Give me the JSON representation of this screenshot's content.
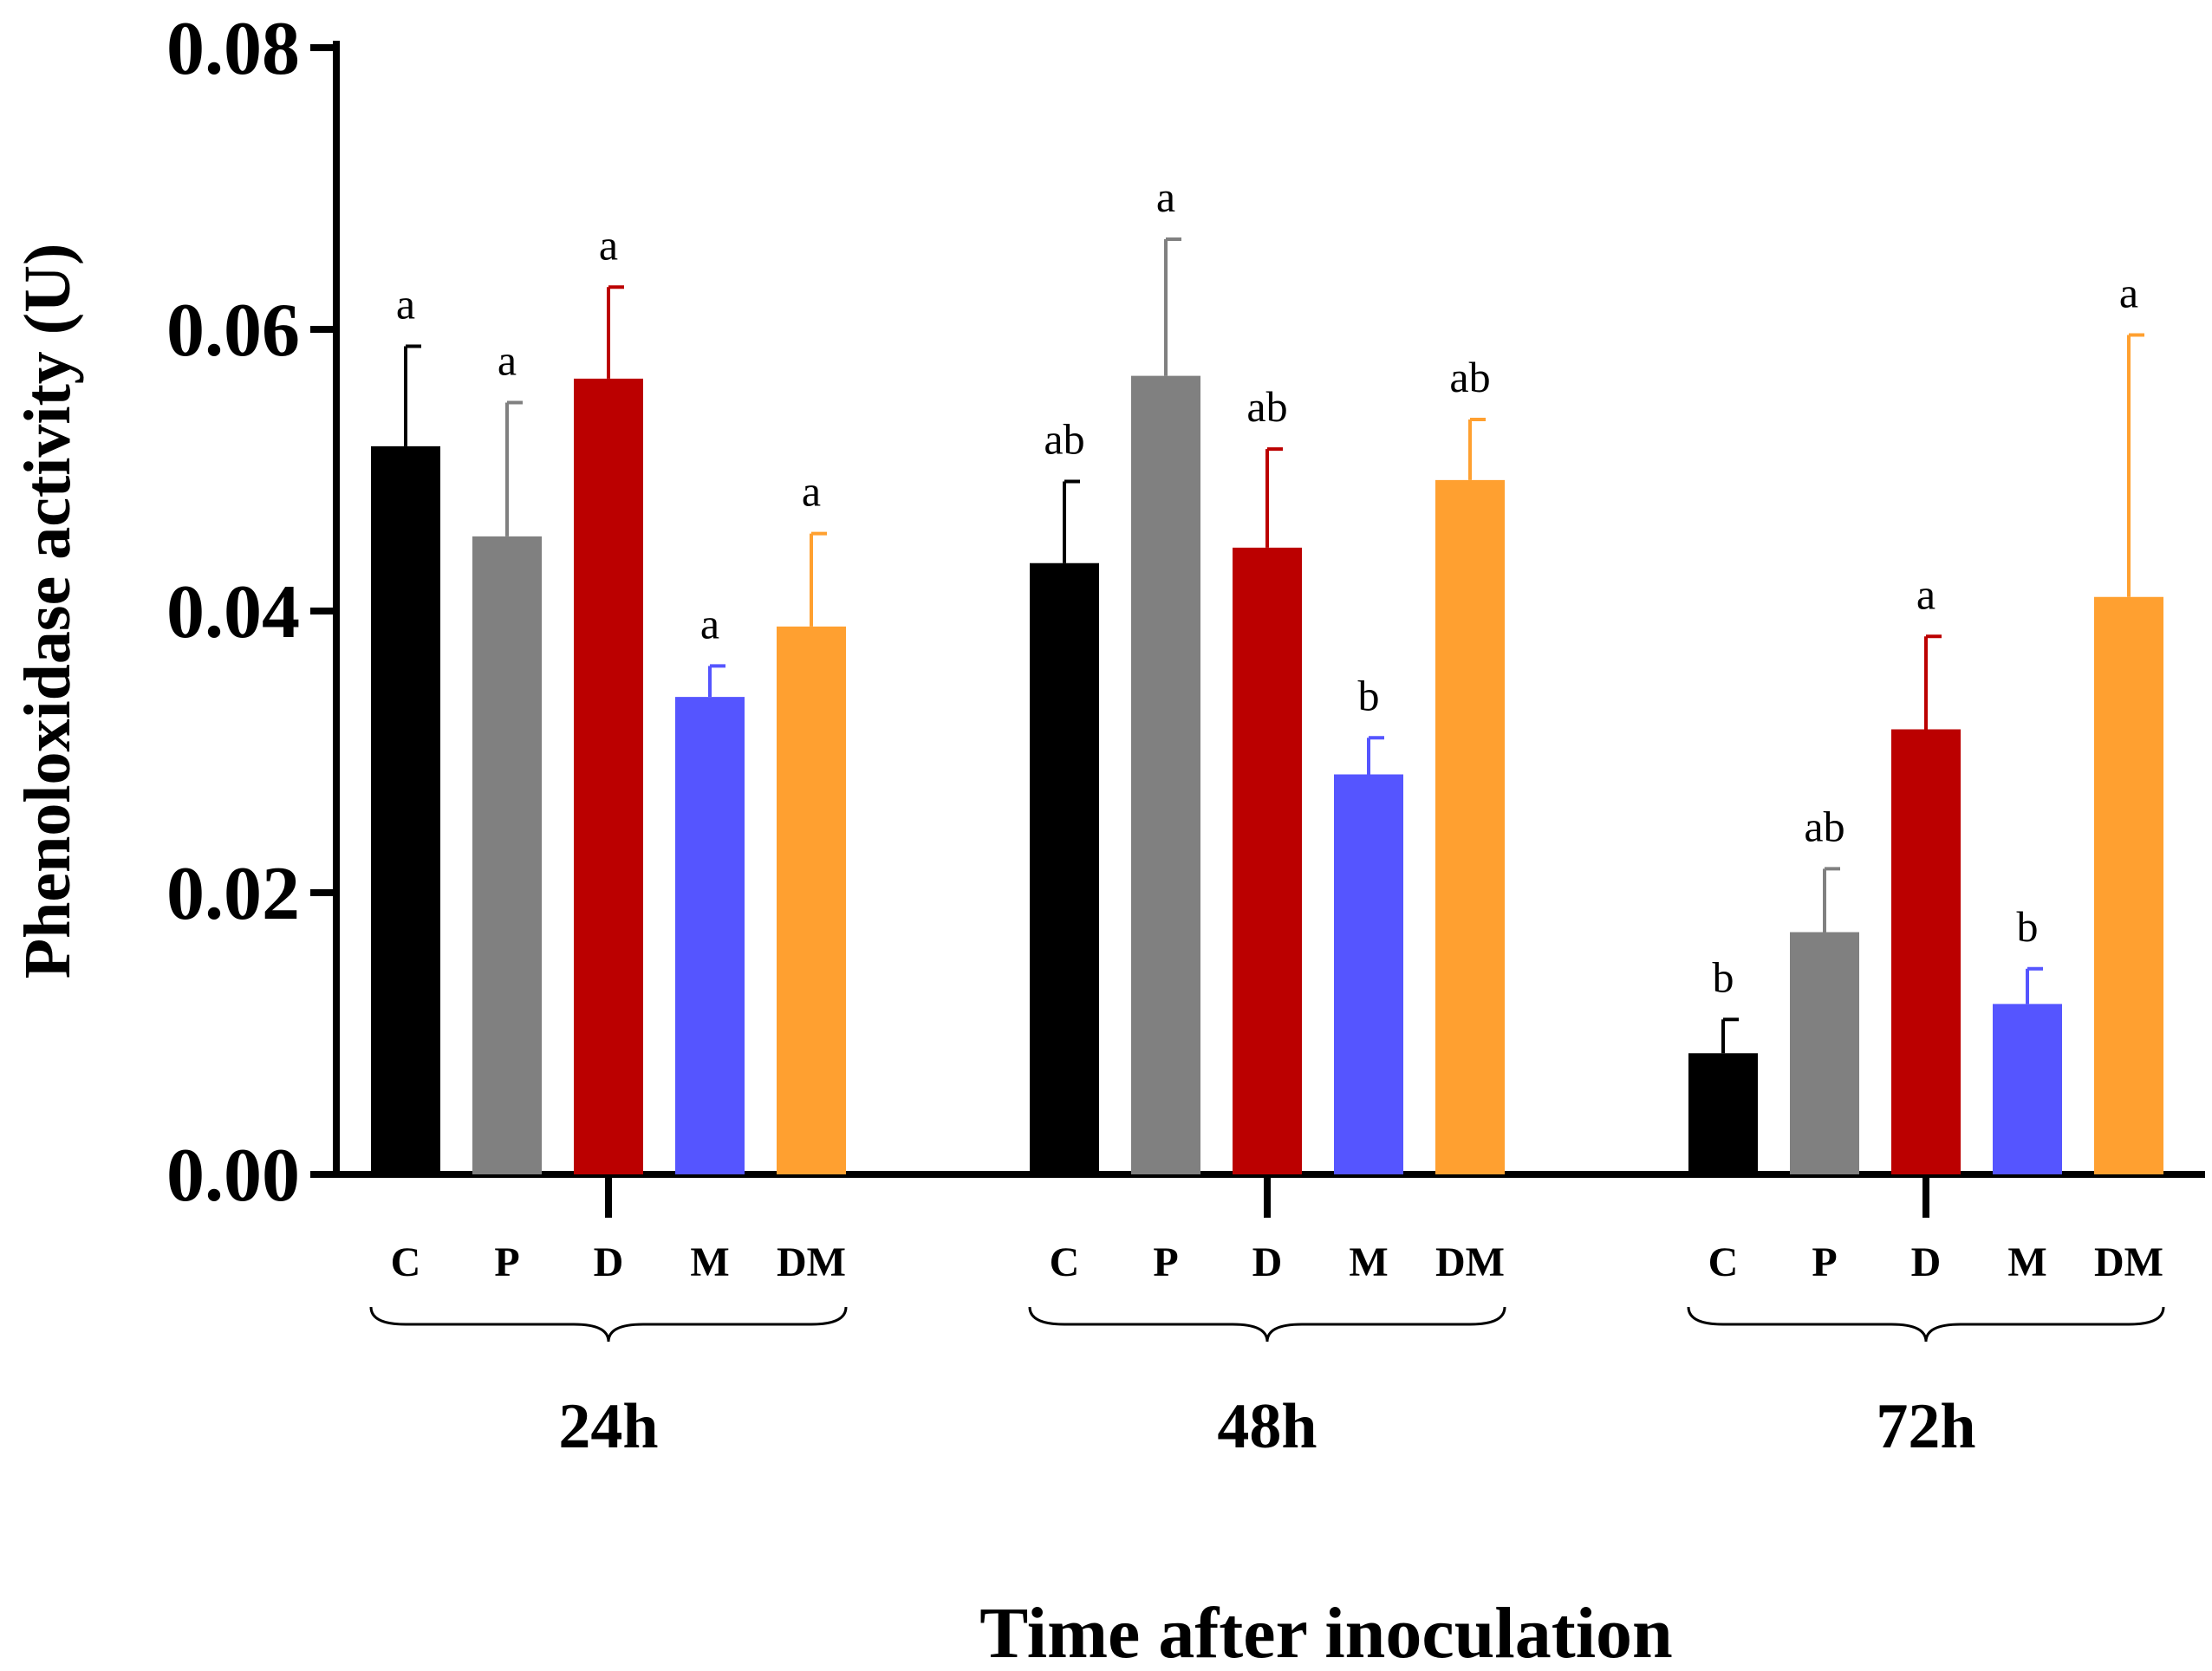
{
  "chart_data": {
    "type": "bar",
    "title": "",
    "xlabel": "Time after inoculation",
    "ylabel": "Phenoloxidase activity (U)",
    "ylim": [
      0,
      0.08
    ],
    "yticks": [
      "0.00",
      "0.02",
      "0.04",
      "0.06",
      "0.08"
    ],
    "treatments": [
      "C",
      "P",
      "D",
      "M",
      "DM"
    ],
    "colors": {
      "C": "#000000",
      "P": "#808080",
      "D": "#bb0000",
      "M": "#5555ff",
      "DM": "#ffa030"
    },
    "groups": [
      {
        "name": "24h",
        "values": [
          0.0517,
          0.0453,
          0.0565,
          0.0339,
          0.0389
        ],
        "errors": [
          0.0071,
          0.0095,
          0.0065,
          0.0022,
          0.0066
        ],
        "labels": [
          "a",
          "a",
          "a",
          "a",
          "a"
        ]
      },
      {
        "name": "48h",
        "values": [
          0.0434,
          0.0567,
          0.0445,
          0.0284,
          0.0493
        ],
        "errors": [
          0.0058,
          0.0097,
          0.007,
          0.0026,
          0.0043
        ],
        "labels": [
          "ab",
          "a",
          "ab",
          "b",
          "ab"
        ]
      },
      {
        "name": "72h",
        "values": [
          0.0086,
          0.0172,
          0.0316,
          0.0121,
          0.041
        ],
        "errors": [
          0.0024,
          0.0045,
          0.0066,
          0.0025,
          0.0186
        ],
        "labels": [
          "b",
          "ab",
          "a",
          "b",
          "a"
        ]
      }
    ]
  }
}
